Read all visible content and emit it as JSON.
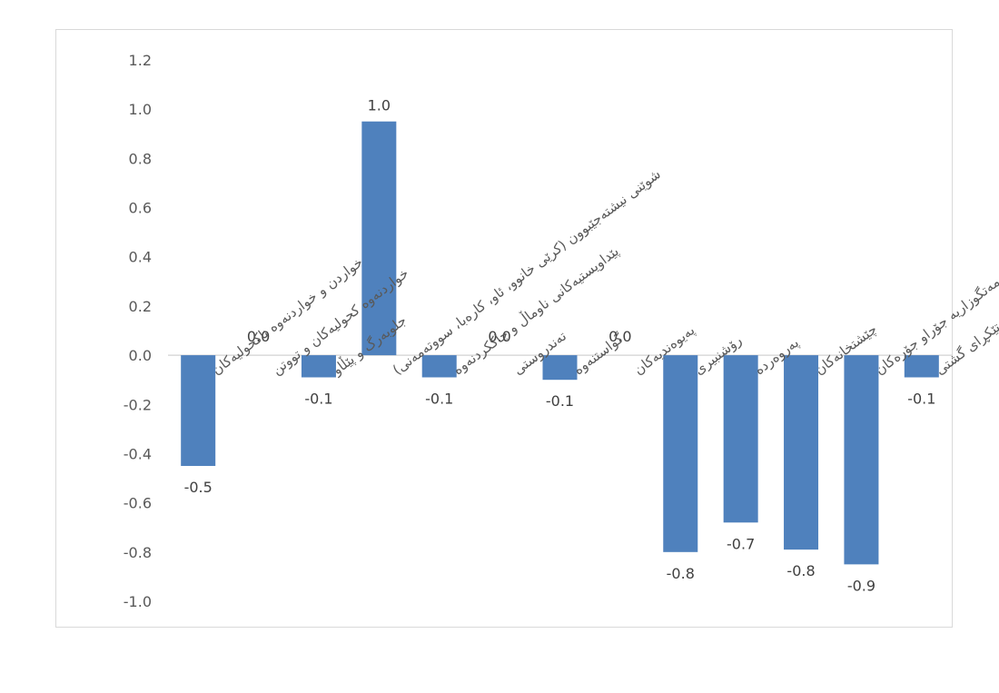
{
  "chart_data": {
    "type": "bar",
    "categories": [
      "خواردن و خواردنەوە ناکحولیەکان",
      "خواردنەوە کحولیەکان و تووتن",
      "جلوبەرگ و پێڵاو",
      "شوێنی نیشتەجێبوون (کرێی خانوو، ئاو، کارەبا، سووتەمەنی)",
      "پێداویستیەکانی ناوماڵ و چاککردنەوە",
      "تەندروستی",
      "گواستنەوە",
      "پەیوەندیەکان",
      "رۆشنبیری",
      "پەروەردە",
      "چێشتخانەکان",
      "کەرەستە و خزمەتگوزاریە جۆراو جۆرەکان",
      "تێکڕای گشتی"
    ],
    "values": [
      -0.45,
      0.0,
      -0.09,
      0.95,
      -0.09,
      0.0,
      -0.1,
      0.0,
      -0.8,
      -0.68,
      -0.79,
      -0.85,
      -0.09
    ],
    "data_labels": [
      "-0.5",
      "0.0",
      "-0.1",
      "1.0",
      "-0.1",
      "0.0",
      "-0.1",
      "0.0",
      "-0.8",
      "-0.7",
      "-0.8",
      "-0.9",
      "-0.1"
    ],
    "y_ticks": [
      "1.2",
      "1.0",
      "0.8",
      "0.6",
      "0.4",
      "0.2",
      "0.0",
      "-0.2",
      "-0.4",
      "-0.6",
      "-0.8",
      "-1.0"
    ],
    "ylim": [
      -1.0,
      1.2
    ],
    "title": "",
    "xlabel": "",
    "ylabel": "",
    "grid": false,
    "legend": "none",
    "colors": {
      "bar": "#4f81bd",
      "axis": "#d9d9d9",
      "text": "#595959"
    }
  }
}
